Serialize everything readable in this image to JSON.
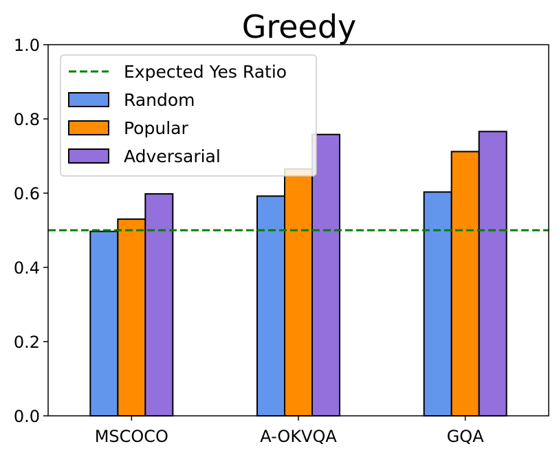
{
  "chart_data": {
    "type": "bar",
    "title": "Greedy",
    "xlabel": "",
    "ylabel": "",
    "categories": [
      "MSCOCO",
      "A-OKVQA",
      "GQA"
    ],
    "series": [
      {
        "name": "Random",
        "color": "#6495ED",
        "values": [
          0.497,
          0.592,
          0.603
        ]
      },
      {
        "name": "Popular",
        "color": "#FF8C00",
        "values": [
          0.53,
          0.665,
          0.712
        ]
      },
      {
        "name": "Adversarial",
        "color": "#9370DB",
        "values": [
          0.598,
          0.758,
          0.766
        ]
      }
    ],
    "reference_line": {
      "name": "Expected Yes Ratio",
      "value": 0.5,
      "color": "#008000",
      "style": "dashed"
    },
    "ylim": [
      0.0,
      1.0
    ],
    "yticks": [
      "0.0",
      "0.2",
      "0.4",
      "0.6",
      "0.8",
      "1.0"
    ],
    "grid": false,
    "legend_position": "top-left"
  }
}
